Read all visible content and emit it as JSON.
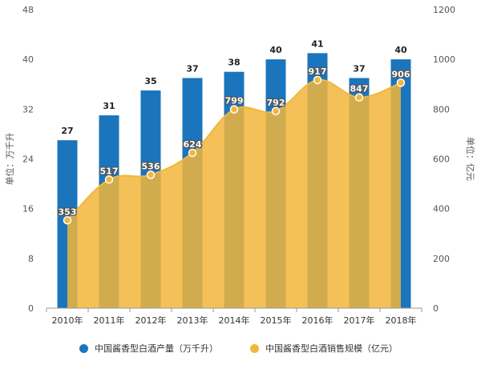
{
  "chart_data": {
    "type": "bar+area",
    "categories": [
      "2010年",
      "2011年",
      "2012年",
      "2013年",
      "2014年",
      "2015年",
      "2016年",
      "2017年",
      "2018年"
    ],
    "series": [
      {
        "name": "中国酱香型白酒产量（万千升）",
        "type": "bar",
        "axis": "left",
        "color": "#1a75bc",
        "values": [
          27,
          31,
          35,
          37,
          38,
          40,
          41,
          37,
          40
        ]
      },
      {
        "name": "中国酱香型白酒销售规模（亿元）",
        "type": "area",
        "axis": "right",
        "color": "#f2b63b",
        "values": [
          353,
          517,
          536,
          624,
          799,
          792,
          917,
          847,
          906
        ]
      }
    ],
    "y_left": {
      "label": "单位：万千升",
      "ylim": [
        0,
        48
      ],
      "ticks": [
        0,
        8,
        16,
        24,
        32,
        40,
        48
      ]
    },
    "y_right": {
      "label": "单位：亿元",
      "ylim": [
        0,
        1200
      ],
      "ticks": [
        0,
        200,
        400,
        600,
        800,
        1000,
        1200
      ]
    },
    "grid": false,
    "legend": "bottom-center"
  }
}
